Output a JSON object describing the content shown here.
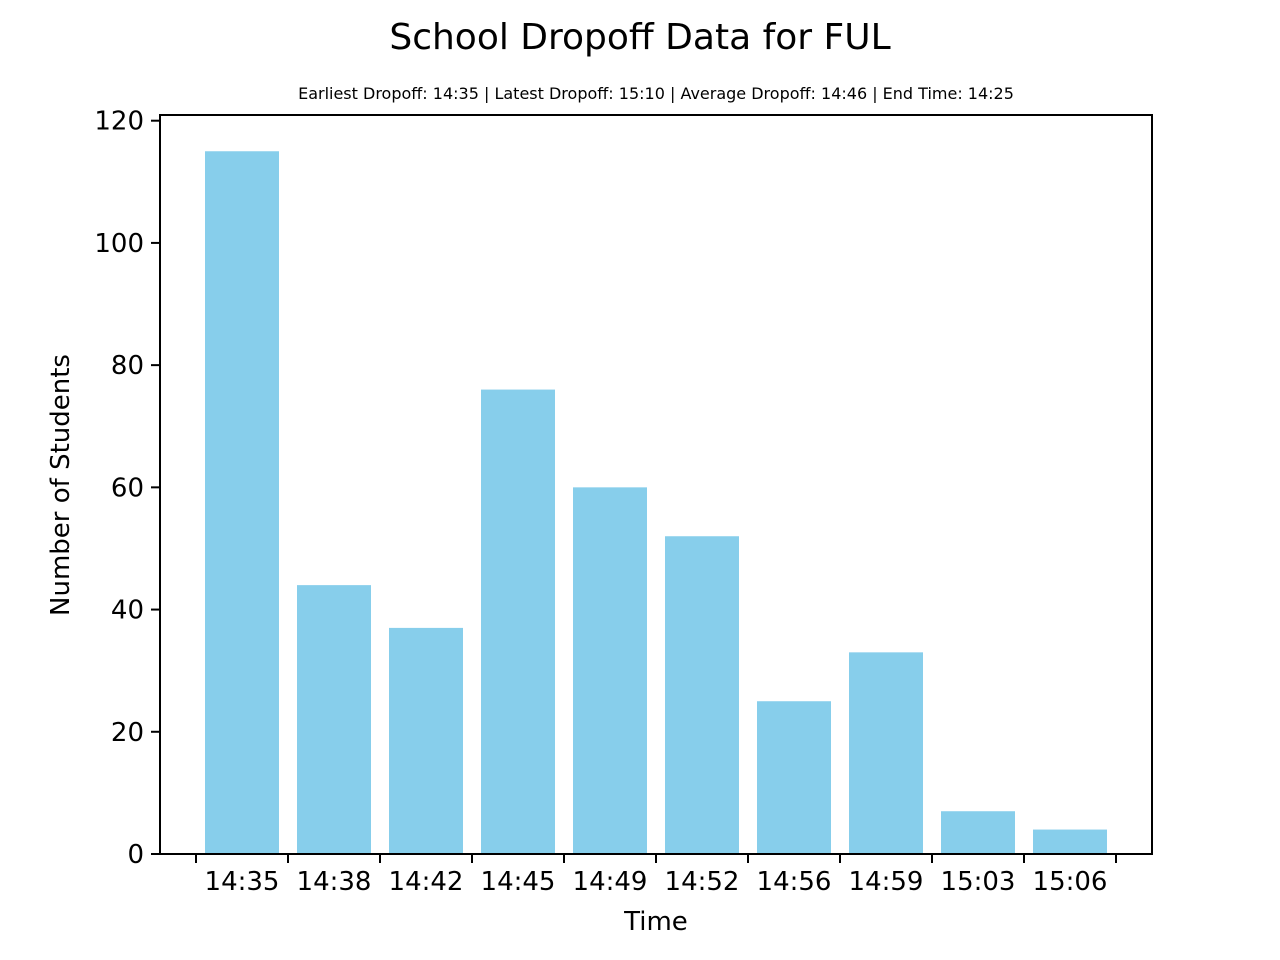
{
  "chart_data": {
    "type": "bar",
    "title": "School Dropoff Data for FUL",
    "subtitle": "Earliest Dropoff: 14:35 | Latest Dropoff: 15:10 | Average Dropoff: 14:46 | End Time: 14:25",
    "xlabel": "Time",
    "ylabel": "Number of Students",
    "categories": [
      "14:35",
      "14:38",
      "14:42",
      "14:45",
      "14:49",
      "14:52",
      "14:56",
      "14:59",
      "15:03",
      "15:06"
    ],
    "values": [
      115,
      44,
      37,
      76,
      60,
      52,
      25,
      33,
      7,
      4
    ],
    "ylim": [
      0,
      120
    ],
    "yticks": [
      0,
      20,
      40,
      60,
      80,
      100,
      120
    ],
    "grid": false,
    "bar_color": "#87ceeb"
  }
}
